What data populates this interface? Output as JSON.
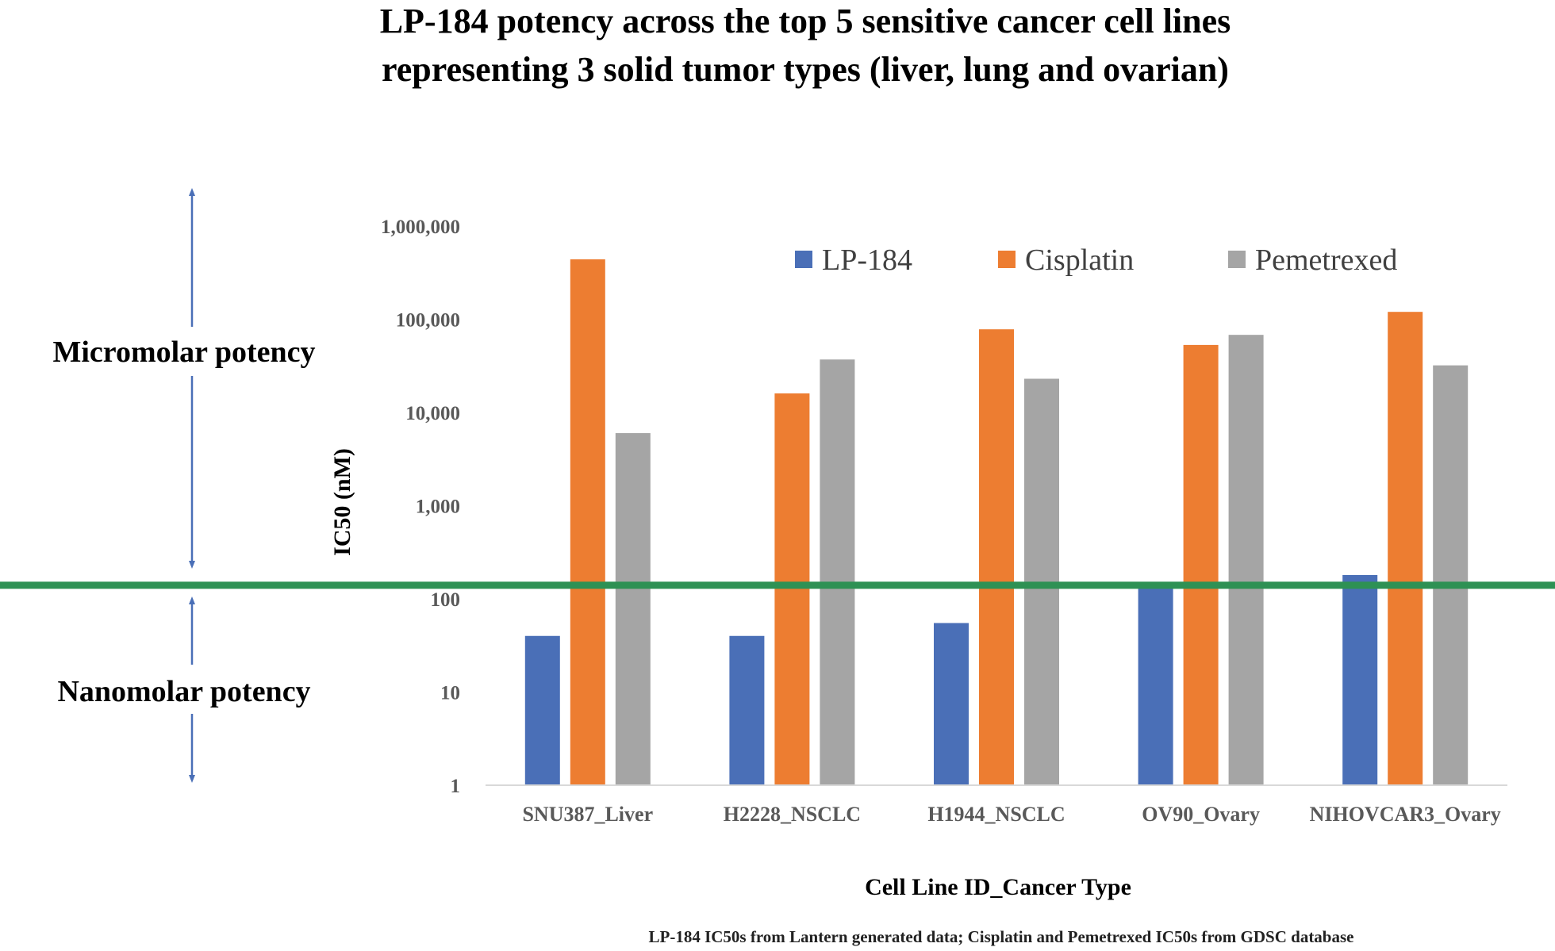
{
  "chart_data": {
    "type": "bar",
    "scale": "log",
    "title_lines": [
      "LP-184 potency across the top 5 sensitive cancer cell lines",
      "representing 3 solid tumor types (liver, lung and ovarian)"
    ],
    "xlabel": "Cell Line ID_Cancer Type",
    "ylabel": "IC50 (nM)",
    "ylim": [
      1,
      1000000
    ],
    "yticks": [
      1,
      10,
      100,
      1000,
      10000,
      100000,
      1000000
    ],
    "ytick_labels": [
      "1",
      "10",
      "100",
      "1,000",
      "10,000",
      "100,000",
      "1,000,000"
    ],
    "categories": [
      "SNU387_Liver",
      "H2228_NSCLC",
      "H1944_NSCLC",
      "OV90_Ovary",
      "NIHOVCAR3_Ovary"
    ],
    "series": [
      {
        "name": "LP-184",
        "color": "#4a6fb7",
        "values": [
          40,
          40,
          55,
          130,
          180
        ]
      },
      {
        "name": "Cisplatin",
        "color": "#ed7d31",
        "values": [
          440000,
          16000,
          78000,
          53000,
          120000
        ]
      },
      {
        "name": "Pemetrexed",
        "color": "#a5a5a5",
        "values": [
          6000,
          37000,
          23000,
          68000,
          32000
        ]
      }
    ],
    "threshold": {
      "value": 140,
      "color": "#2e9154"
    },
    "legend": "top-right",
    "grid": false,
    "annotations": {
      "upper": "Micromolar potency",
      "lower": "Nanomolar potency",
      "arrow_color": "#4a6fb7"
    },
    "footnote": "LP-184 IC50s from Lantern generated data; Cisplatin and Pemetrexed IC50s from GDSC database"
  }
}
